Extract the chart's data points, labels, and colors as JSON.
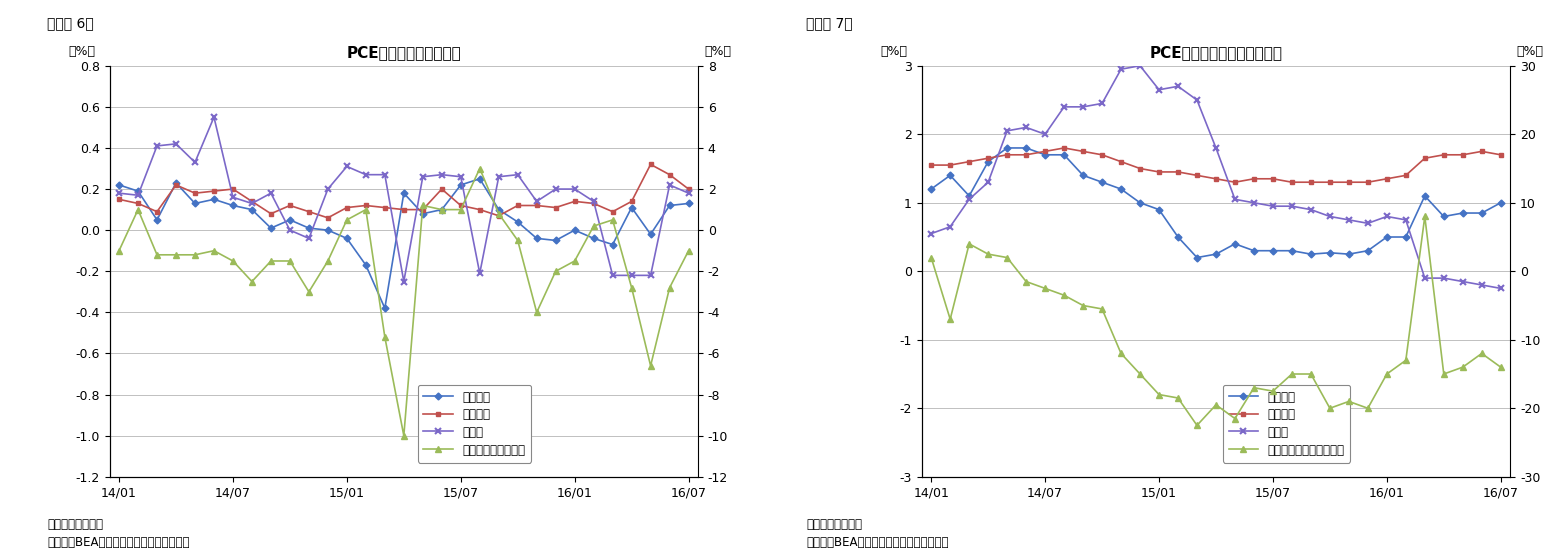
{
  "fig6": {
    "title": "PCE価格指数（前月比）",
    "label_left": "（%）",
    "label_right": "（%）",
    "ylim_left": [
      -1.2,
      0.8
    ],
    "ylim_right": [
      -12,
      8
    ],
    "yticks_left": [
      -1.2,
      -1.0,
      -0.8,
      -0.6,
      -0.4,
      -0.2,
      0.0,
      0.2,
      0.4,
      0.6,
      0.8
    ],
    "yticks_right": [
      -12,
      -10,
      -8,
      -6,
      -4,
      -2,
      0,
      2,
      4,
      6,
      8
    ],
    "note1": "（注）季節調整済",
    "note2": "（資料）BEAよりニッセイ基礎研究所作成",
    "series": {
      "sougo": {
        "label": "総合指数",
        "color": "#4472C4",
        "marker": "D",
        "markersize": 3.5,
        "values": [
          0.22,
          0.19,
          0.05,
          0.23,
          0.13,
          0.15,
          0.12,
          0.1,
          0.01,
          0.05,
          0.01,
          0.0,
          -0.04,
          -0.17,
          -0.38,
          0.18,
          0.08,
          0.1,
          0.22,
          0.25,
          0.1,
          0.04,
          -0.04,
          -0.05,
          0.0,
          -0.04,
          -0.07,
          0.11,
          -0.02,
          0.12,
          0.13
        ]
      },
      "core": {
        "label": "コア指数",
        "color": "#C0504D",
        "marker": "s",
        "markersize": 3.5,
        "values": [
          0.15,
          0.13,
          0.09,
          0.22,
          0.18,
          0.19,
          0.2,
          0.14,
          0.08,
          0.12,
          0.09,
          0.06,
          0.11,
          0.12,
          0.11,
          0.1,
          0.1,
          0.2,
          0.12,
          0.1,
          0.07,
          0.12,
          0.12,
          0.11,
          0.14,
          0.13,
          0.09,
          0.14,
          0.32,
          0.27,
          0.2
        ]
      },
      "food": {
        "label": "食料品",
        "color": "#7B68C8",
        "marker": "x",
        "markersize": 5,
        "markeredgewidth": 1.5,
        "values": [
          0.18,
          0.17,
          0.41,
          0.42,
          0.33,
          0.55,
          0.16,
          0.13,
          0.18,
          0.0,
          -0.04,
          0.2,
          0.31,
          0.27,
          0.27,
          -0.25,
          0.26,
          0.27,
          0.26,
          -0.21,
          0.26,
          0.27,
          0.14,
          0.2,
          0.2,
          0.14,
          -0.22,
          -0.22,
          -0.22,
          0.22,
          0.18
        ]
      },
      "energy": {
        "label": "エネルギー（右軸）",
        "color": "#9BBB59",
        "marker": "^",
        "markersize": 4,
        "axis": "right",
        "values": [
          -1.0,
          1.0,
          -1.2,
          -1.2,
          -1.2,
          -1.0,
          -1.5,
          -2.5,
          -1.5,
          -1.5,
          -3.0,
          -1.5,
          0.5,
          1.0,
          -5.2,
          -10.0,
          1.2,
          1.0,
          1.0,
          3.0,
          0.8,
          -0.5,
          -4.0,
          -2.0,
          -1.5,
          0.2,
          0.5,
          -2.8,
          -6.6,
          -2.8,
          -1.0
        ]
      }
    }
  },
  "fig7": {
    "title": "PCE価格指数（前年同月比）",
    "label_left": "（%）",
    "label_right": "（%）",
    "ylim_left": [
      -3,
      3
    ],
    "ylim_right": [
      -30,
      30
    ],
    "yticks_left": [
      -3,
      -2,
      -1,
      0,
      1,
      2,
      3
    ],
    "yticks_right": [
      -30,
      -20,
      -10,
      0,
      10,
      20,
      30
    ],
    "note1": "（注）季節調整済",
    "note2": "（資料）BEAよりニッセイ基礎研究所作成",
    "series": {
      "sougo": {
        "label": "総合指数",
        "color": "#4472C4",
        "marker": "D",
        "markersize": 3.5,
        "values": [
          1.2,
          1.4,
          1.1,
          1.6,
          1.8,
          1.8,
          1.7,
          1.7,
          1.4,
          1.3,
          1.2,
          1.0,
          0.9,
          0.5,
          0.2,
          0.25,
          0.4,
          0.3,
          0.3,
          0.3,
          0.25,
          0.27,
          0.25,
          0.3,
          0.5,
          0.5,
          1.1,
          0.8,
          0.85,
          0.85,
          1.0
        ]
      },
      "core": {
        "label": "コア指数",
        "color": "#C0504D",
        "marker": "s",
        "markersize": 3.5,
        "values": [
          1.55,
          1.55,
          1.6,
          1.65,
          1.7,
          1.7,
          1.75,
          1.8,
          1.75,
          1.7,
          1.6,
          1.5,
          1.45,
          1.45,
          1.4,
          1.35,
          1.3,
          1.35,
          1.35,
          1.3,
          1.3,
          1.3,
          1.3,
          1.3,
          1.35,
          1.4,
          1.65,
          1.7,
          1.7,
          1.75,
          1.7
        ]
      },
      "food": {
        "label": "食料品",
        "color": "#7B68C8",
        "marker": "x",
        "markersize": 5,
        "markeredgewidth": 1.5,
        "values": [
          0.55,
          0.65,
          1.05,
          1.3,
          2.05,
          2.1,
          2.0,
          2.4,
          2.4,
          2.45,
          2.95,
          3.0,
          2.65,
          2.7,
          2.5,
          1.8,
          1.05,
          1.0,
          0.95,
          0.95,
          0.9,
          0.8,
          0.75,
          0.7,
          0.8,
          0.75,
          -0.1,
          -0.1,
          -0.15,
          -0.2,
          -0.25
        ]
      },
      "energy": {
        "label": "エネルギー関連（右軸）",
        "color": "#9BBB59",
        "marker": "^",
        "markersize": 4,
        "axis": "right",
        "values": [
          2.0,
          -7.0,
          4.0,
          2.5,
          2.0,
          -1.5,
          -2.5,
          -3.5,
          -5.0,
          -5.5,
          -12.0,
          -15.0,
          -18.0,
          -18.5,
          -22.5,
          -19.5,
          -21.5,
          -17.0,
          -17.5,
          -15.0,
          -15.0,
          -20.0,
          -19.0,
          -20.0,
          -15.0,
          -13.0,
          8.0,
          -15.0,
          -14.0,
          -12.0,
          -14.0
        ]
      }
    }
  },
  "fig_label6": "（図表 6）",
  "fig_label7": "（図表 7）",
  "bg_color": "#ffffff",
  "grid_color": "#c0c0c0",
  "text_color": "#000000",
  "xtick_labels": [
    "14/01",
    "14/07",
    "15/01",
    "15/07",
    "16/01",
    "16/07"
  ]
}
